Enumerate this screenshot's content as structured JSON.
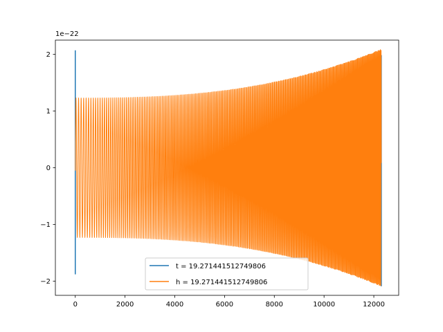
{
  "chart_data": {
    "type": "line",
    "title": "",
    "xlabel": "",
    "ylabel": "",
    "y_offset_label": "1e−22",
    "xlim": [
      -800,
      13000
    ],
    "ylim": [
      -2.25,
      2.25
    ],
    "x_ticks": [
      0,
      2000,
      4000,
      6000,
      8000,
      10000,
      12000
    ],
    "x_tick_labels": [
      "0",
      "2000",
      "4000",
      "6000",
      "8000",
      "10000",
      "12000"
    ],
    "y_ticks": [
      -2,
      -1,
      0,
      1,
      2
    ],
    "y_tick_labels": [
      "−2",
      "−1",
      "0",
      "1",
      "2"
    ],
    "grid": false,
    "legend_position": "lower-center",
    "x_end": 12300,
    "oscillation": {
      "amp_start": 1.23,
      "amp_end": 2.09,
      "cycles_start": 115,
      "cycles_end": 400
    },
    "series": [
      {
        "name": "t = 19.271441512749806",
        "color": "#1f77b4",
        "spike_x": 0,
        "spike_max": 2.07,
        "spike_min": -1.88
      },
      {
        "name": "h = 19.271441512749806",
        "color": "#ff7f0e",
        "start_value": -0.05
      }
    ]
  }
}
